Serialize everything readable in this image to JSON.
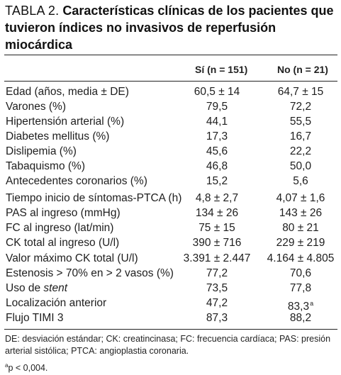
{
  "table": {
    "number": "TABLA 2.",
    "title": "Características clínicas de los pacientes que tuvieron índices no invasivos de reperfusión miocárdica",
    "col_yes": "Sí (n = 151)",
    "col_no": "No (n = 21)",
    "rows": [
      {
        "label": "Edad (años, media ± DE)",
        "yes": "60,5 ± 14",
        "no": "64,7 ± 15"
      },
      {
        "label": "Varones (%)",
        "yes": "79,5",
        "no": "72,2"
      },
      {
        "label": "Hipertensión arterial (%)",
        "yes": "44,1",
        "no": "55,5"
      },
      {
        "label": "Diabetes mellitus (%)",
        "yes": "17,3",
        "no": "16,7"
      },
      {
        "label": "Dislipemia (%)",
        "yes": "45,6",
        "no": "22,2"
      },
      {
        "label": "Tabaquismo (%)",
        "yes": "46,8",
        "no": "50,0"
      },
      {
        "label": "Antecedentes coronarios (%)",
        "yes": "15,2",
        "no": "5,6"
      },
      {
        "label": "Tiempo inicio de síntomas-PTCA (h)",
        "yes": "4,8 ± 2,7",
        "no": "4,07 ± 1,6"
      },
      {
        "label": "PAS al ingreso (mmHg)",
        "yes": "134 ± 26",
        "no": "143 ± 26"
      },
      {
        "label": "FC al ingreso (lat/min)",
        "yes": "75 ± 15",
        "no": "80 ± 21"
      },
      {
        "label": "CK total al ingreso (U/l)",
        "yes": "390 ± 716",
        "no": "229 ± 219"
      },
      {
        "label": "Valor máximo CK total (U/l)",
        "yes": "3.391 ± 2.447",
        "no": "4.164 ± 4.805"
      },
      {
        "label": "Estenosis > 70% en > 2 vasos (%)",
        "yes": "77,2",
        "no": "70,6"
      },
      {
        "label_prefix": "Uso de ",
        "label_italic": "stent",
        "yes": "73,5",
        "no": "77,8"
      },
      {
        "label": "Localización anterior",
        "yes": "47,2",
        "no": "83,3",
        "no_note": "a"
      },
      {
        "label": "Flujo TIMI 3",
        "yes": "87,3",
        "no": "88,2"
      }
    ],
    "footnote_abbrev": "DE: desviación estándar; CK: creatincinasa; FC: frecuencia cardíaca; PAS: presión arterial sistólica; PTCA: angioplastia coronaria.",
    "footnote_sup": "a",
    "footnote_p": "p < 0,004."
  }
}
